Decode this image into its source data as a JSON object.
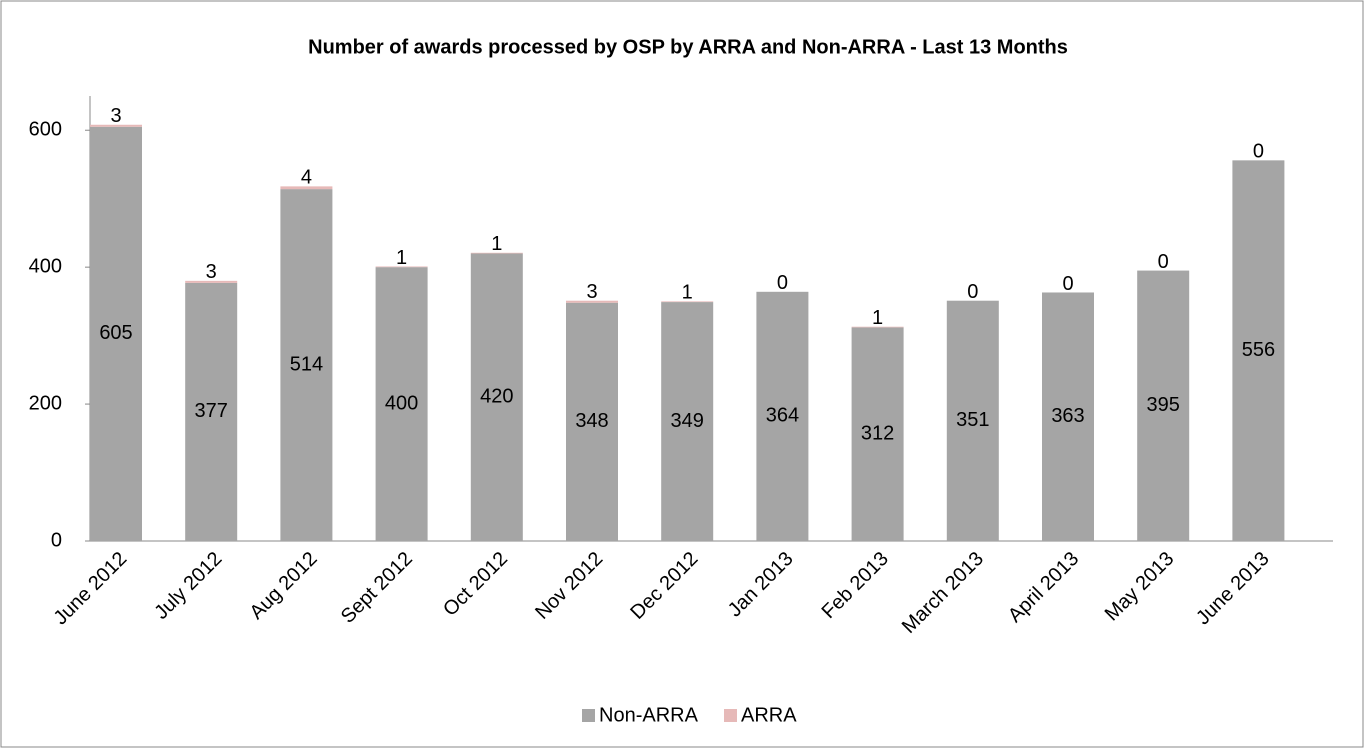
{
  "chart_data": {
    "type": "stacked_bar",
    "title": "Number of awards processed by OSP by ARRA and Non-ARRA - Last 13 Months",
    "categories": [
      "June 2012",
      "July 2012",
      "Aug 2012",
      "Sept 2012",
      "Oct 2012",
      "Nov 2012",
      "Dec 2012",
      "Jan 2013",
      "Feb 2013",
      "March 2013",
      "April 2013",
      "May 2013",
      "June 2013"
    ],
    "series": [
      {
        "name": "Non-ARRA",
        "color": "#a5a5a5",
        "values": [
          605,
          377,
          514,
          400,
          420,
          348,
          349,
          364,
          312,
          351,
          363,
          395,
          556
        ]
      },
      {
        "name": "ARRA",
        "color": "#e6b9b8",
        "values": [
          3,
          3,
          4,
          1,
          1,
          3,
          1,
          0,
          1,
          0,
          0,
          0,
          0
        ]
      }
    ],
    "ylim": [
      0,
      650
    ],
    "yticks": [
      0,
      200,
      400,
      600
    ],
    "legend": "bottom"
  }
}
